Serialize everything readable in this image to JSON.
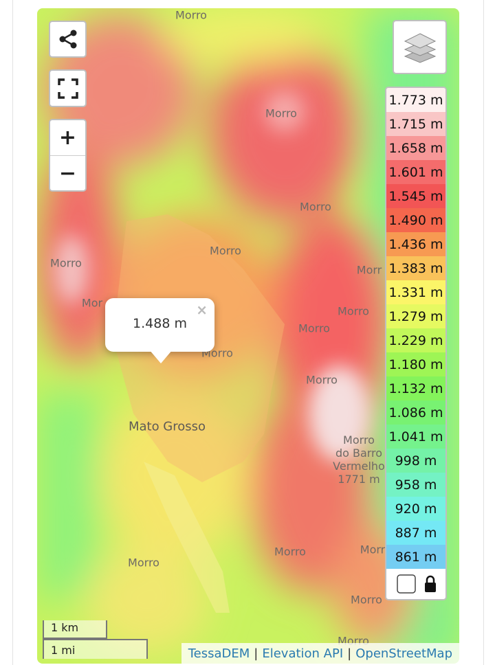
{
  "controls": {
    "zoom_in": "+",
    "zoom_out": "−"
  },
  "map_labels": [
    "Morro",
    "Morro",
    "Morro",
    "Morro",
    "Morro",
    "Morr",
    "Mor",
    "Morro",
    "Morro",
    "Morro",
    "Morro",
    "Mato Grosso",
    "Morro\ndo Barro\nVermelho\n1771 m",
    "Morro",
    "Morro",
    "Morr",
    "Morro",
    "Morro"
  ],
  "popup": {
    "value": "1.488 m",
    "close": "×"
  },
  "legend": [
    {
      "label": "1.773 m",
      "color": "#fdf0ef"
    },
    {
      "label": "1.715 m",
      "color": "#f9c6c6"
    },
    {
      "label": "1.658 m",
      "color": "#f79898"
    },
    {
      "label": "1.601 m",
      "color": "#f46c6c"
    },
    {
      "label": "1.545 m",
      "color": "#f25555"
    },
    {
      "label": "1.490 m",
      "color": "#f4674d"
    },
    {
      "label": "1.436 m",
      "color": "#f79a52"
    },
    {
      "label": "1.383 m",
      "color": "#f9c25a"
    },
    {
      "label": "1.331 m",
      "color": "#fbf568"
    },
    {
      "label": "1.279 m",
      "color": "#e6f961"
    },
    {
      "label": "1.229 m",
      "color": "#c2f85a"
    },
    {
      "label": "1.180 m",
      "color": "#9ef555"
    },
    {
      "label": "1.132 m",
      "color": "#84f35b"
    },
    {
      "label": "1.086 m",
      "color": "#78f272"
    },
    {
      "label": "1.041 m",
      "color": "#75f28c"
    },
    {
      "label": "998 m",
      "color": "#74f2a8"
    },
    {
      "label": "958 m",
      "color": "#74f2c4"
    },
    {
      "label": "920 m",
      "color": "#74f2e2"
    },
    {
      "label": "887 m",
      "color": "#74e8f5"
    },
    {
      "label": "861 m",
      "color": "#74cdf2"
    }
  ],
  "scale": {
    "km": "1 km",
    "mi": "1 mi"
  },
  "attribution": {
    "links": [
      "TessaDEM",
      "Elevation API",
      "OpenStreetMap"
    ],
    "separator": "|"
  }
}
